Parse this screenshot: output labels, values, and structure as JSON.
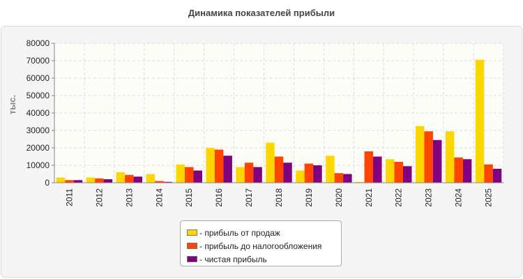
{
  "title": "Динамика показателей прибыли",
  "chart_data": {
    "type": "bar",
    "categories": [
      "2011",
      "2012",
      "2013",
      "2014",
      "2015",
      "2016",
      "2017",
      "2018",
      "2019",
      "2020",
      "2021",
      "2022",
      "2023",
      "2024",
      "2025"
    ],
    "series": [
      {
        "name": "- прибыль от продаж",
        "color": "#ffd700",
        "values": [
          3000,
          3000,
          6000,
          5000,
          10500,
          20000,
          9000,
          23000,
          7000,
          15500,
          500,
          13500,
          32500,
          29500,
          70500
        ]
      },
      {
        "name": "- прибыль до налогообложения",
        "color": "#ff4500",
        "values": [
          1500,
          2500,
          4500,
          1000,
          9000,
          19000,
          11500,
          15000,
          11000,
          5500,
          18000,
          12000,
          29500,
          14500,
          10500
        ]
      },
      {
        "name": "- чистая прибыль",
        "color": "#800080",
        "values": [
          1500,
          2000,
          3500,
          500,
          7000,
          15500,
          9000,
          11500,
          10000,
          5000,
          15000,
          9500,
          24500,
          13500,
          8000
        ]
      }
    ],
    "ylabel": "тыс.",
    "ylim": [
      0,
      80000
    ],
    "yticks": [
      "0",
      "10000",
      "20000",
      "30000",
      "40000",
      "50000",
      "60000",
      "70000",
      "80000"
    ],
    "grid": true,
    "legend_position": "bottom-center"
  }
}
